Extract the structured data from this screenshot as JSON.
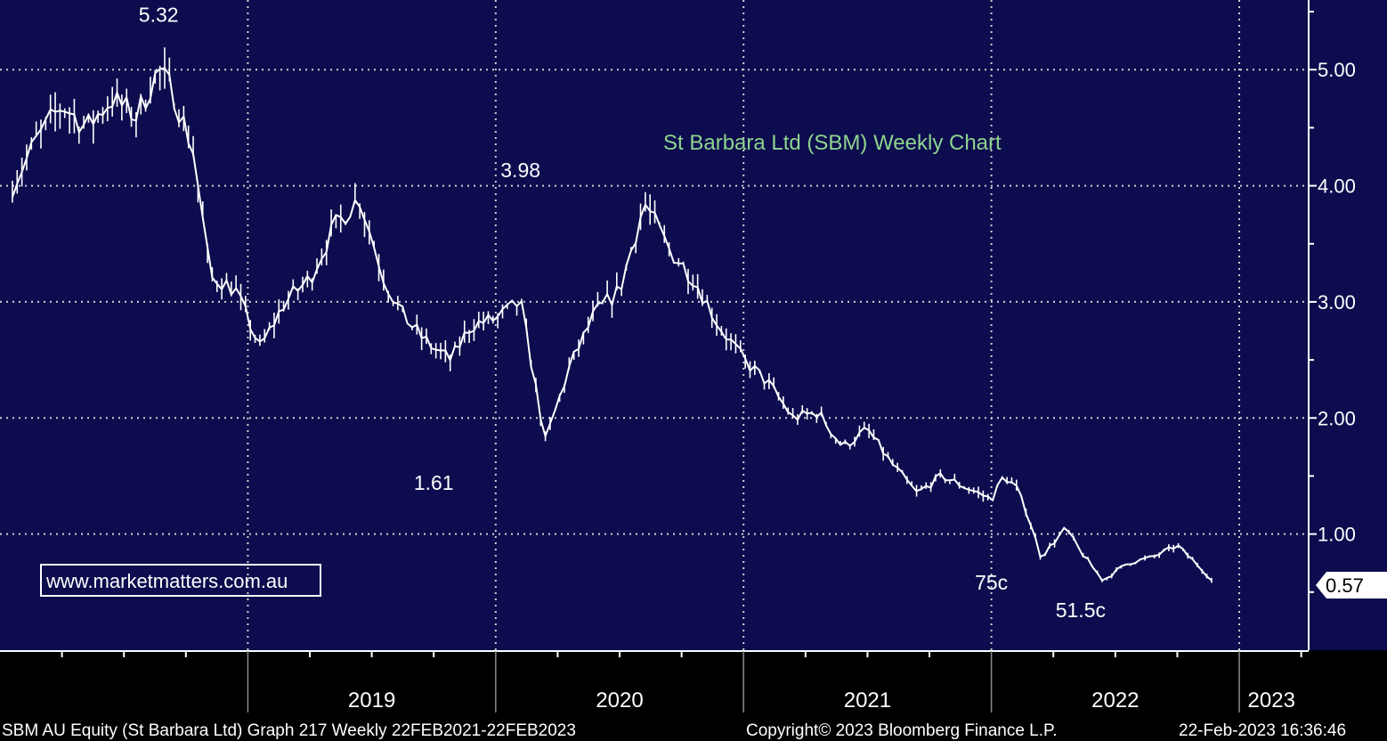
{
  "chart_data": {
    "type": "line",
    "style": "ohlc-bars",
    "title": "St Barbara Ltd (SBM) Weekly Chart",
    "ylim": [
      0.0,
      5.6
    ],
    "yticks": [
      1.0,
      2.0,
      3.0,
      4.0,
      5.0
    ],
    "ytick_labels": [
      "1.00",
      "2.00",
      "3.00",
      "4.00",
      "5.00"
    ],
    "x_year_labels": [
      {
        "label": "2019",
        "at": 2019.5
      },
      {
        "label": "2020",
        "at": 2020.5
      },
      {
        "label": "2021",
        "at": 2021.5
      },
      {
        "label": "2022",
        "at": 2022.5
      },
      {
        "label": "2023",
        "at": 2023.13
      }
    ],
    "x_year_boundaries": [
      2019.0,
      2020.0,
      2021.0,
      2022.0,
      2023.0
    ],
    "grid": true,
    "last_value_label": "0.57",
    "last_value": 0.57,
    "annotations": [
      {
        "text": "5.32",
        "x": 2018.64,
        "y": 5.32
      },
      {
        "text": "3.98",
        "x": 2020.1,
        "y": 3.98
      },
      {
        "text": "1.61",
        "x": 2019.75,
        "y": 1.61
      },
      {
        "text": "75c",
        "x": 2022.0,
        "y": 0.75
      },
      {
        "text": "51.5c",
        "x": 2022.36,
        "y": 0.515
      }
    ],
    "series": [
      {
        "x": [
          2018.05,
          2018.15,
          2018.25,
          2018.35,
          2018.45,
          2018.55,
          2018.64,
          2018.7,
          2018.78,
          2018.85,
          2018.88,
          2018.95,
          2019.05,
          2019.15,
          2019.25,
          2019.35,
          2019.45,
          2019.55,
          2019.62,
          2019.7,
          2019.75,
          2019.82,
          2019.9,
          2020.0,
          2020.1,
          2020.2,
          2020.3,
          2020.4,
          2020.5,
          2020.6,
          2020.7,
          2020.8,
          2020.9,
          2021.0,
          2021.1,
          2021.2,
          2021.3,
          2021.4,
          2021.5,
          2021.6,
          2021.7,
          2021.8,
          2021.9,
          2022.0,
          2022.05,
          2022.1,
          2022.15,
          2022.2,
          2022.3,
          2022.36,
          2022.45,
          2022.55,
          2022.65,
          2022.75,
          2022.85,
          2022.9
        ],
        "values": [
          4.0,
          4.4,
          4.7,
          4.5,
          4.75,
          4.6,
          5.0,
          4.8,
          4.3,
          3.2,
          3.2,
          3.1,
          2.6,
          3.0,
          3.2,
          3.65,
          3.9,
          3.2,
          2.9,
          2.7,
          2.6,
          2.5,
          2.8,
          2.85,
          3.0,
          1.8,
          2.45,
          2.9,
          3.1,
          3.85,
          3.45,
          3.2,
          2.8,
          2.5,
          2.3,
          2.0,
          2.05,
          1.75,
          1.9,
          1.6,
          1.35,
          1.5,
          1.4,
          1.3,
          1.5,
          1.4,
          1.15,
          0.8,
          1.05,
          0.85,
          0.6,
          0.75,
          0.8,
          0.9,
          0.7,
          0.57
        ]
      }
    ]
  },
  "watermark": {
    "url": "www.marketmatters.com.au"
  },
  "footer": {
    "left": "SBM AU Equity (St Barbara Ltd) Graph 217  Weekly 22FEB2021-22FEB2023",
    "center": "Copyright© 2023 Bloomberg Finance L.P.",
    "right": "22-Feb-2023 16:36:46"
  },
  "colors": {
    "plot_bg": "#0c0c4e",
    "title": "#8fd38f",
    "price": "#ffffff",
    "grid": "#cfcfcf"
  }
}
